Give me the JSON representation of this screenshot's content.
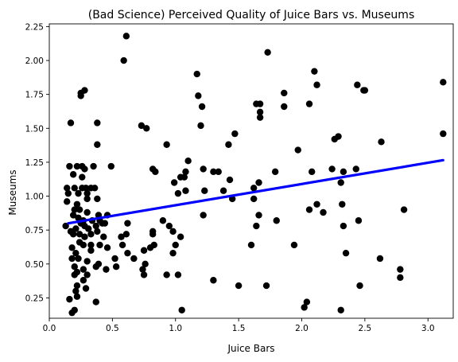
{
  "chart_data": {
    "type": "scatter",
    "title": "(Bad Science) Perceived Quality of Juice Bars vs. Museums",
    "xlabel": "Juice Bars",
    "ylabel": "Museums",
    "xlim": [
      0.0,
      3.2
    ],
    "ylim": [
      0.1,
      2.27
    ],
    "xticks": [
      0.0,
      0.5,
      1.0,
      1.5,
      2.0,
      2.5,
      3.0
    ],
    "xtick_labels": [
      "0.0",
      "0.5",
      "1.0",
      "1.5",
      "2.0",
      "2.5",
      "3.0"
    ],
    "yticks": [
      0.25,
      0.5,
      0.75,
      1.0,
      1.25,
      1.5,
      1.75,
      2.0,
      2.25
    ],
    "ytick_labels": [
      "0.25",
      "0.50",
      "0.75",
      "1.00",
      "1.25",
      "1.50",
      "1.75",
      "2.00",
      "2.25"
    ],
    "grid": false,
    "point_color": "#000000",
    "trend_color": "#0000ff",
    "trendline": {
      "x": [
        0.15,
        3.12
      ],
      "y": [
        0.8,
        1.265
      ]
    },
    "points": [
      [
        0.61,
        2.18
      ],
      [
        0.59,
        2.0
      ],
      [
        1.73,
        2.06
      ],
      [
        0.25,
        1.76
      ],
      [
        0.25,
        1.74
      ],
      [
        0.28,
        1.78
      ],
      [
        0.17,
        1.54
      ],
      [
        0.38,
        1.54
      ],
      [
        0.38,
        1.38
      ],
      [
        0.73,
        1.52
      ],
      [
        0.77,
        1.5
      ],
      [
        1.17,
        1.9
      ],
      [
        1.18,
        1.74
      ],
      [
        1.21,
        1.66
      ],
      [
        1.2,
        1.52
      ],
      [
        1.64,
        1.68
      ],
      [
        1.67,
        1.68
      ],
      [
        1.67,
        1.62
      ],
      [
        1.67,
        1.58
      ],
      [
        1.86,
        1.76
      ],
      [
        1.86,
        1.66
      ],
      [
        2.06,
        1.68
      ],
      [
        2.1,
        1.92
      ],
      [
        2.12,
        1.82
      ],
      [
        2.44,
        1.82
      ],
      [
        2.5,
        1.78
      ],
      [
        2.49,
        1.78
      ],
      [
        3.12,
        1.84
      ],
      [
        1.97,
        1.34
      ],
      [
        2.26,
        1.42
      ],
      [
        2.29,
        1.44
      ],
      [
        2.63,
        1.4
      ],
      [
        3.12,
        1.46
      ],
      [
        1.42,
        1.38
      ],
      [
        1.47,
        1.46
      ],
      [
        0.93,
        1.38
      ],
      [
        0.22,
        1.22
      ],
      [
        0.26,
        1.22
      ],
      [
        0.16,
        1.22
      ],
      [
        0.19,
        1.16
      ],
      [
        0.28,
        1.2
      ],
      [
        0.35,
        1.22
      ],
      [
        0.26,
        1.14
      ],
      [
        0.49,
        1.22
      ],
      [
        0.82,
        1.2
      ],
      [
        0.84,
        1.18
      ],
      [
        1.04,
        1.14
      ],
      [
        1.1,
        1.26
      ],
      [
        1.08,
        1.18
      ],
      [
        1.22,
        1.2
      ],
      [
        1.3,
        1.18
      ],
      [
        1.34,
        1.18
      ],
      [
        1.38,
        1.04
      ],
      [
        1.43,
        1.12
      ],
      [
        1.62,
        1.06
      ],
      [
        1.62,
        0.98
      ],
      [
        1.66,
        1.1
      ],
      [
        1.79,
        1.18
      ],
      [
        2.08,
        1.18
      ],
      [
        2.24,
        1.2
      ],
      [
        2.33,
        1.18
      ],
      [
        2.43,
        1.2
      ],
      [
        2.31,
        1.1
      ],
      [
        2.32,
        0.94
      ],
      [
        2.12,
        0.94
      ],
      [
        2.17,
        0.88
      ],
      [
        2.06,
        0.9
      ],
      [
        2.33,
        0.78
      ],
      [
        2.45,
        0.82
      ],
      [
        2.35,
        0.58
      ],
      [
        2.81,
        0.9
      ],
      [
        2.62,
        0.54
      ],
      [
        2.78,
        0.46
      ],
      [
        2.78,
        0.4
      ],
      [
        2.46,
        0.34
      ],
      [
        2.31,
        0.16
      ],
      [
        1.94,
        0.64
      ],
      [
        2.04,
        0.22
      ],
      [
        2.02,
        0.18
      ],
      [
        1.8,
        0.82
      ],
      [
        1.72,
        0.34
      ],
      [
        1.64,
        0.78
      ],
      [
        1.6,
        0.64
      ],
      [
        1.66,
        0.86
      ],
      [
        1.5,
        0.34
      ],
      [
        1.45,
        0.98
      ],
      [
        1.3,
        0.38
      ],
      [
        1.22,
        0.86
      ],
      [
        1.23,
        1.04
      ],
      [
        0.14,
        1.06
      ],
      [
        0.15,
        1.02
      ],
      [
        0.14,
        0.96
      ],
      [
        0.2,
        1.06
      ],
      [
        0.23,
        1.02
      ],
      [
        0.26,
        1.06
      ],
      [
        0.29,
        1.06
      ],
      [
        0.3,
        1.02
      ],
      [
        0.33,
        1.06
      ],
      [
        0.36,
        1.06
      ],
      [
        0.3,
        0.98
      ],
      [
        0.38,
        0.98
      ],
      [
        0.2,
        0.9
      ],
      [
        0.22,
        0.94
      ],
      [
        0.24,
        0.9
      ],
      [
        0.3,
        0.88
      ],
      [
        0.39,
        0.86
      ],
      [
        0.19,
        0.86
      ],
      [
        0.23,
        0.84
      ],
      [
        0.27,
        0.82
      ],
      [
        0.34,
        0.82
      ],
      [
        0.4,
        0.82
      ],
      [
        0.44,
        0.8
      ],
      [
        0.46,
        0.86
      ],
      [
        0.13,
        0.78
      ],
      [
        0.17,
        0.74
      ],
      [
        0.21,
        0.76
      ],
      [
        0.25,
        0.8
      ],
      [
        0.28,
        0.78
      ],
      [
        0.31,
        0.76
      ],
      [
        0.37,
        0.78
      ],
      [
        0.42,
        0.8
      ],
      [
        0.33,
        0.72
      ],
      [
        0.19,
        0.72
      ],
      [
        0.24,
        0.72
      ],
      [
        0.28,
        0.7
      ],
      [
        0.38,
        0.74
      ],
      [
        0.43,
        0.7
      ],
      [
        0.24,
        0.66
      ],
      [
        0.27,
        0.64
      ],
      [
        0.18,
        0.62
      ],
      [
        0.21,
        0.58
      ],
      [
        0.33,
        0.64
      ],
      [
        0.4,
        0.64
      ],
      [
        0.46,
        0.62
      ],
      [
        0.23,
        0.54
      ],
      [
        0.18,
        0.54
      ],
      [
        0.3,
        0.52
      ],
      [
        0.37,
        0.48
      ],
      [
        0.39,
        0.5
      ],
      [
        0.45,
        0.46
      ],
      [
        0.22,
        0.44
      ],
      [
        0.27,
        0.46
      ],
      [
        0.2,
        0.48
      ],
      [
        0.52,
        0.54
      ],
      [
        0.53,
        0.48
      ],
      [
        0.57,
        0.7
      ],
      [
        0.61,
        0.72
      ],
      [
        0.62,
        0.8
      ],
      [
        0.58,
        0.64
      ],
      [
        0.62,
        0.58
      ],
      [
        0.67,
        0.54
      ],
      [
        0.74,
        0.46
      ],
      [
        0.75,
        0.42
      ],
      [
        0.76,
        0.5
      ],
      [
        0.75,
        0.6
      ],
      [
        0.8,
        0.62
      ],
      [
        0.83,
        0.64
      ],
      [
        0.82,
        0.72
      ],
      [
        0.82,
        0.74
      ],
      [
        0.9,
        0.82
      ],
      [
        0.95,
        0.78
      ],
      [
        0.98,
        0.74
      ],
      [
        0.93,
        0.42
      ],
      [
        0.98,
        0.58
      ],
      [
        1.0,
        0.64
      ],
      [
        1.04,
        0.7
      ],
      [
        1.02,
        1.02
      ],
      [
        1.08,
        1.04
      ],
      [
        1.07,
        1.14
      ],
      [
        0.99,
        1.1
      ],
      [
        1.02,
        0.42
      ],
      [
        1.05,
        0.16
      ],
      [
        0.27,
        0.38
      ],
      [
        0.29,
        0.32
      ],
      [
        0.22,
        0.34
      ],
      [
        0.21,
        0.3
      ],
      [
        0.22,
        0.26
      ],
      [
        0.16,
        0.24
      ],
      [
        0.2,
        0.16
      ],
      [
        0.18,
        0.14
      ],
      [
        0.37,
        0.22
      ],
      [
        0.3,
        0.42
      ],
      [
        0.2,
        0.42
      ],
      [
        0.33,
        0.6
      ]
    ]
  }
}
